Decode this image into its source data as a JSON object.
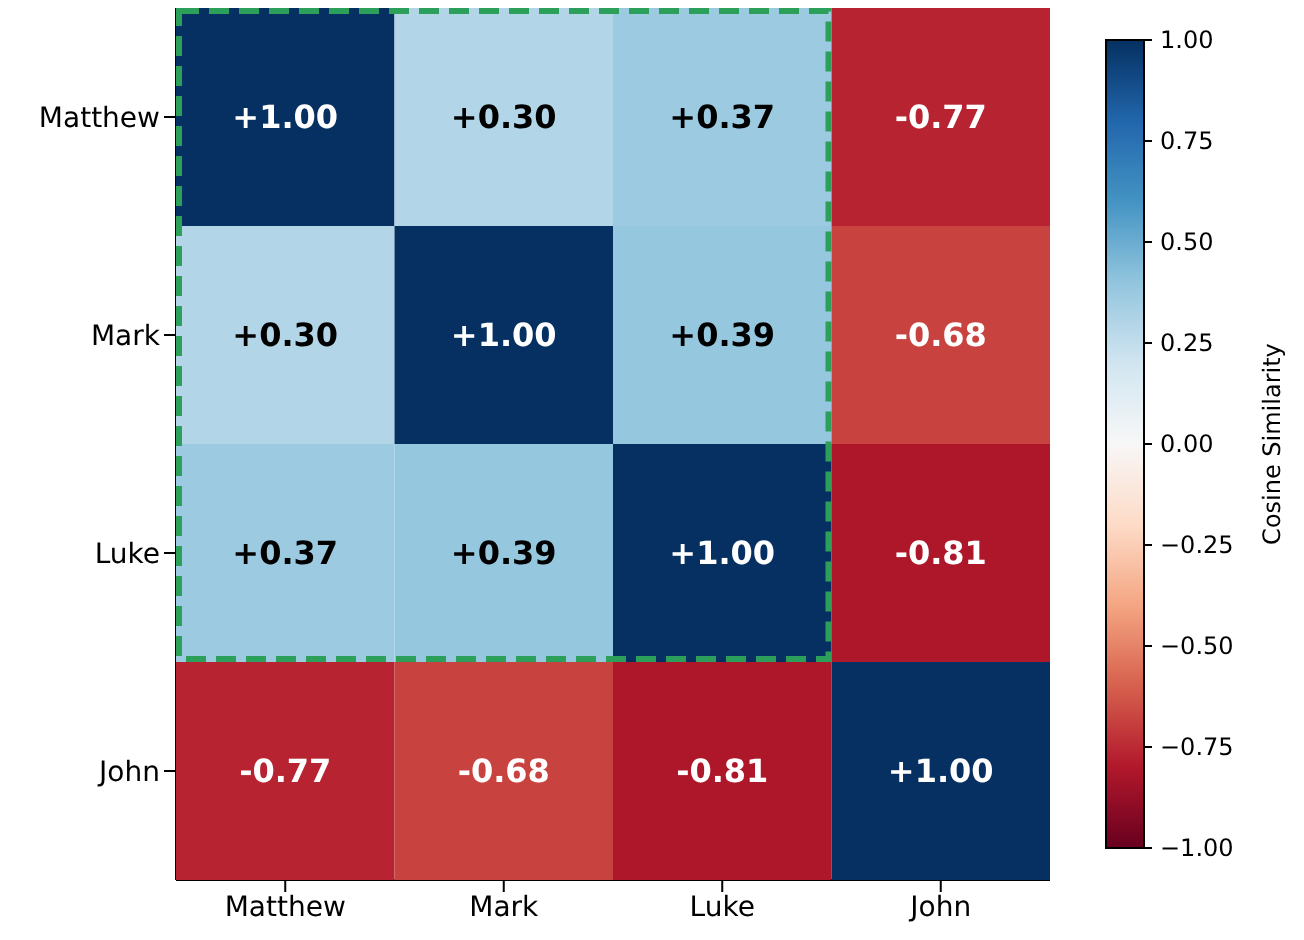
{
  "chart_data": {
    "type": "heatmap",
    "categories": [
      "Matthew",
      "Mark",
      "Luke",
      "John"
    ],
    "y_categories": [
      "Matthew",
      "Mark",
      "Luke",
      "John"
    ],
    "cells": [
      [
        1.0,
        0.3,
        0.37,
        -0.77
      ],
      [
        0.3,
        1.0,
        0.39,
        -0.68
      ],
      [
        0.37,
        0.39,
        1.0,
        -0.81
      ],
      [
        -0.77,
        -0.68,
        -0.81,
        1.0
      ]
    ],
    "cell_labels": [
      [
        "+1.00",
        "+0.30",
        "+0.37",
        "-0.77"
      ],
      [
        "+0.30",
        "+1.00",
        "+0.39",
        "-0.68"
      ],
      [
        "+0.37",
        "+0.39",
        "+1.00",
        "-0.81"
      ],
      [
        "-0.77",
        "-0.68",
        "-0.81",
        "+1.00"
      ]
    ],
    "clim": [
      -1,
      1
    ],
    "cticks": [
      {
        "value": 1,
        "label": "1.00"
      },
      {
        "value": 0.75,
        "label": "0.75"
      },
      {
        "value": 0.5,
        "label": "0.50"
      },
      {
        "value": 0.25,
        "label": "0.25"
      },
      {
        "value": 0,
        "label": "0.00"
      },
      {
        "value": -0.25,
        "label": "−0.25"
      },
      {
        "value": -0.5,
        "label": "−0.50"
      },
      {
        "value": -0.75,
        "label": "−0.75"
      },
      {
        "value": -1,
        "label": "−1.00"
      }
    ],
    "clabel": "Cosine Similarity"
  }
}
